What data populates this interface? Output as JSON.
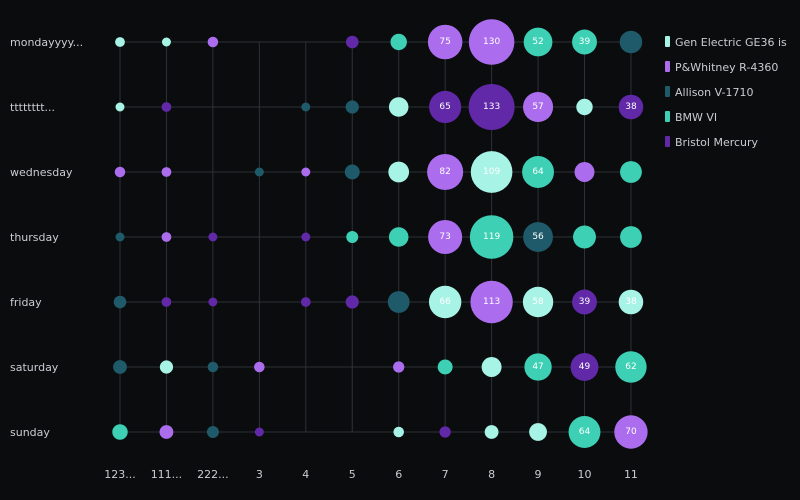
{
  "chart_data": {
    "type": "scatter",
    "subtype": "punchcard-bubble",
    "x": [
      "123...",
      "111...",
      "222...",
      "3",
      "4",
      "5",
      "6",
      "7",
      "8",
      "9",
      "10",
      "11"
    ],
    "y": [
      "mondayyyy...",
      "tttttttt...",
      "wednesday",
      "thursday",
      "friday",
      "saturday",
      "sunday"
    ],
    "grid": true,
    "legend_position": "right",
    "series": [
      {
        "name": "Gen Electric GE36 is",
        "color": "#a7f3e6"
      },
      {
        "name": "P&Whitney R-4360",
        "color": "#ab6ded"
      },
      {
        "name": "Allison V-1710",
        "color": "#1e5a6a"
      },
      {
        "name": "BMW VI",
        "color": "#3dd0b4"
      },
      {
        "name": "Bristol Mercury",
        "color": "#6128a8"
      }
    ],
    "points": [
      {
        "row": 0,
        "col": 0,
        "series": 0,
        "value": 6,
        "label": ""
      },
      {
        "row": 0,
        "col": 1,
        "series": 0,
        "value": 5,
        "label": ""
      },
      {
        "row": 0,
        "col": 2,
        "series": 1,
        "value": 7,
        "label": ""
      },
      {
        "row": 0,
        "col": 5,
        "series": 4,
        "value": 10,
        "label": ""
      },
      {
        "row": 0,
        "col": 6,
        "series": 3,
        "value": 17,
        "label": ""
      },
      {
        "row": 0,
        "col": 7,
        "series": 1,
        "value": 75,
        "label": "75"
      },
      {
        "row": 0,
        "col": 8,
        "series": 1,
        "value": 130,
        "label": "130"
      },
      {
        "row": 0,
        "col": 9,
        "series": 3,
        "value": 52,
        "label": "52"
      },
      {
        "row": 0,
        "col": 10,
        "series": 3,
        "value": 39,
        "label": "39"
      },
      {
        "row": 0,
        "col": 11,
        "series": 2,
        "value": 32,
        "label": ""
      },
      {
        "row": 1,
        "col": 0,
        "series": 0,
        "value": 5,
        "label": ""
      },
      {
        "row": 1,
        "col": 1,
        "series": 4,
        "value": 6,
        "label": ""
      },
      {
        "row": 1,
        "col": 4,
        "series": 2,
        "value": 4,
        "label": ""
      },
      {
        "row": 1,
        "col": 5,
        "series": 2,
        "value": 11,
        "label": ""
      },
      {
        "row": 1,
        "col": 6,
        "series": 0,
        "value": 24,
        "label": ""
      },
      {
        "row": 1,
        "col": 7,
        "series": 4,
        "value": 65,
        "label": "65"
      },
      {
        "row": 1,
        "col": 8,
        "series": 4,
        "value": 133,
        "label": "133"
      },
      {
        "row": 1,
        "col": 9,
        "series": 1,
        "value": 57,
        "label": "57"
      },
      {
        "row": 1,
        "col": 10,
        "series": 0,
        "value": 17,
        "label": ""
      },
      {
        "row": 1,
        "col": 11,
        "series": 4,
        "value": 38,
        "label": "38"
      },
      {
        "row": 2,
        "col": 0,
        "series": 1,
        "value": 7,
        "label": ""
      },
      {
        "row": 2,
        "col": 1,
        "series": 1,
        "value": 6,
        "label": ""
      },
      {
        "row": 2,
        "col": 3,
        "series": 2,
        "value": 4,
        "label": ""
      },
      {
        "row": 2,
        "col": 4,
        "series": 1,
        "value": 5,
        "label": ""
      },
      {
        "row": 2,
        "col": 5,
        "series": 2,
        "value": 14,
        "label": ""
      },
      {
        "row": 2,
        "col": 6,
        "series": 0,
        "value": 27,
        "label": ""
      },
      {
        "row": 2,
        "col": 7,
        "series": 1,
        "value": 82,
        "label": "82"
      },
      {
        "row": 2,
        "col": 8,
        "series": 0,
        "value": 109,
        "label": "109"
      },
      {
        "row": 2,
        "col": 9,
        "series": 3,
        "value": 64,
        "label": "64"
      },
      {
        "row": 2,
        "col": 10,
        "series": 1,
        "value": 25,
        "label": ""
      },
      {
        "row": 2,
        "col": 11,
        "series": 3,
        "value": 30,
        "label": ""
      },
      {
        "row": 3,
        "col": 0,
        "series": 2,
        "value": 5,
        "label": ""
      },
      {
        "row": 3,
        "col": 1,
        "series": 1,
        "value": 6,
        "label": ""
      },
      {
        "row": 3,
        "col": 2,
        "series": 4,
        "value": 5,
        "label": ""
      },
      {
        "row": 3,
        "col": 4,
        "series": 4,
        "value": 4,
        "label": ""
      },
      {
        "row": 3,
        "col": 5,
        "series": 3,
        "value": 9,
        "label": ""
      },
      {
        "row": 3,
        "col": 6,
        "series": 3,
        "value": 24,
        "label": ""
      },
      {
        "row": 3,
        "col": 7,
        "series": 1,
        "value": 73,
        "label": "73"
      },
      {
        "row": 3,
        "col": 8,
        "series": 3,
        "value": 119,
        "label": "119"
      },
      {
        "row": 3,
        "col": 9,
        "series": 2,
        "value": 56,
        "label": "56"
      },
      {
        "row": 3,
        "col": 10,
        "series": 3,
        "value": 33,
        "label": ""
      },
      {
        "row": 3,
        "col": 11,
        "series": 3,
        "value": 30,
        "label": ""
      },
      {
        "row": 4,
        "col": 0,
        "series": 2,
        "value": 10,
        "label": ""
      },
      {
        "row": 4,
        "col": 1,
        "series": 4,
        "value": 6,
        "label": ""
      },
      {
        "row": 4,
        "col": 2,
        "series": 4,
        "value": 5,
        "label": ""
      },
      {
        "row": 4,
        "col": 4,
        "series": 4,
        "value": 6,
        "label": ""
      },
      {
        "row": 4,
        "col": 5,
        "series": 4,
        "value": 11,
        "label": ""
      },
      {
        "row": 4,
        "col": 6,
        "series": 2,
        "value": 30,
        "label": ""
      },
      {
        "row": 4,
        "col": 7,
        "series": 0,
        "value": 66,
        "label": "66"
      },
      {
        "row": 4,
        "col": 8,
        "series": 1,
        "value": 113,
        "label": "113"
      },
      {
        "row": 4,
        "col": 9,
        "series": 0,
        "value": 58,
        "label": "58"
      },
      {
        "row": 4,
        "col": 10,
        "series": 4,
        "value": 39,
        "label": "39"
      },
      {
        "row": 4,
        "col": 11,
        "series": 0,
        "value": 38,
        "label": "38"
      },
      {
        "row": 5,
        "col": 0,
        "series": 2,
        "value": 12,
        "label": ""
      },
      {
        "row": 5,
        "col": 1,
        "series": 0,
        "value": 11,
        "label": ""
      },
      {
        "row": 5,
        "col": 2,
        "series": 2,
        "value": 7,
        "label": ""
      },
      {
        "row": 5,
        "col": 3,
        "series": 1,
        "value": 7,
        "label": ""
      },
      {
        "row": 5,
        "col": 6,
        "series": 1,
        "value": 8,
        "label": ""
      },
      {
        "row": 5,
        "col": 7,
        "series": 3,
        "value": 14,
        "label": ""
      },
      {
        "row": 5,
        "col": 8,
        "series": 0,
        "value": 25,
        "label": ""
      },
      {
        "row": 5,
        "col": 9,
        "series": 3,
        "value": 47,
        "label": "47"
      },
      {
        "row": 5,
        "col": 10,
        "series": 4,
        "value": 49,
        "label": "49"
      },
      {
        "row": 5,
        "col": 11,
        "series": 3,
        "value": 62,
        "label": "62"
      },
      {
        "row": 6,
        "col": 0,
        "series": 3,
        "value": 15,
        "label": ""
      },
      {
        "row": 6,
        "col": 1,
        "series": 1,
        "value": 12,
        "label": ""
      },
      {
        "row": 6,
        "col": 2,
        "series": 2,
        "value": 9,
        "label": ""
      },
      {
        "row": 6,
        "col": 3,
        "series": 4,
        "value": 5,
        "label": ""
      },
      {
        "row": 6,
        "col": 6,
        "series": 0,
        "value": 7,
        "label": ""
      },
      {
        "row": 6,
        "col": 7,
        "series": 4,
        "value": 8,
        "label": ""
      },
      {
        "row": 6,
        "col": 8,
        "series": 0,
        "value": 12,
        "label": ""
      },
      {
        "row": 6,
        "col": 9,
        "series": 0,
        "value": 20,
        "label": ""
      },
      {
        "row": 6,
        "col": 10,
        "series": 3,
        "value": 64,
        "label": "64"
      },
      {
        "row": 6,
        "col": 11,
        "series": 1,
        "value": 70,
        "label": "70"
      }
    ]
  }
}
